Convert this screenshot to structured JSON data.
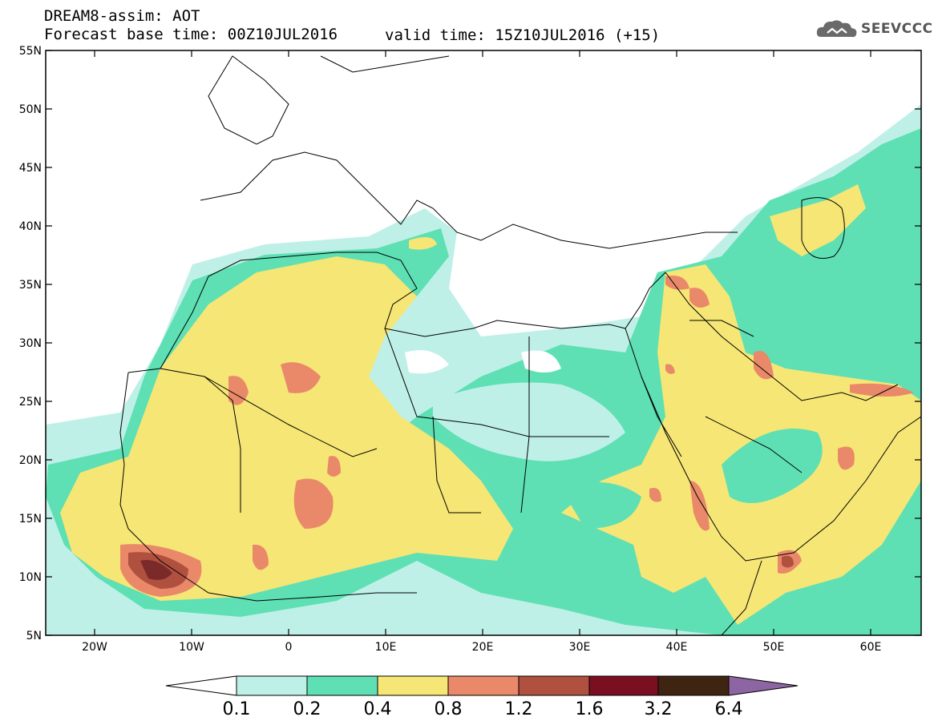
{
  "header": {
    "title": "DREAM8-assim: AOT",
    "base_time": "Forecast base time: 00Z10JUL2016",
    "valid_time": "valid time: 15Z10JUL2016 (+15)",
    "logo_text": "SEEVCCC"
  },
  "map": {
    "lat_labels": [
      "55N",
      "50N",
      "45N",
      "40N",
      "35N",
      "30N",
      "25N",
      "20N",
      "15N",
      "10N",
      "5N"
    ],
    "lon_labels": [
      "20W",
      "10W",
      "0",
      "10E",
      "20E",
      "30E",
      "40E",
      "50E",
      "60E"
    ]
  },
  "colorbar": {
    "labels": [
      "0.1",
      "0.2",
      "0.4",
      "0.8",
      "1.2",
      "1.6",
      "3.2",
      "6.4"
    ],
    "colors": [
      "#ffffff",
      "#bff0e8",
      "#5ee0b4",
      "#f6e675",
      "#e9896a",
      "#b0503f",
      "#7a0f22",
      "#3f2412",
      "#8d65a2"
    ]
  },
  "colors": {
    "aot_01_02": "#bff0e8",
    "aot_02_04": "#5ee0b4",
    "aot_04_08": "#f6e675",
    "aot_08_12": "#e9896a",
    "aot_12_16": "#b0503f",
    "aot_16_32": "#7a0f22"
  }
}
